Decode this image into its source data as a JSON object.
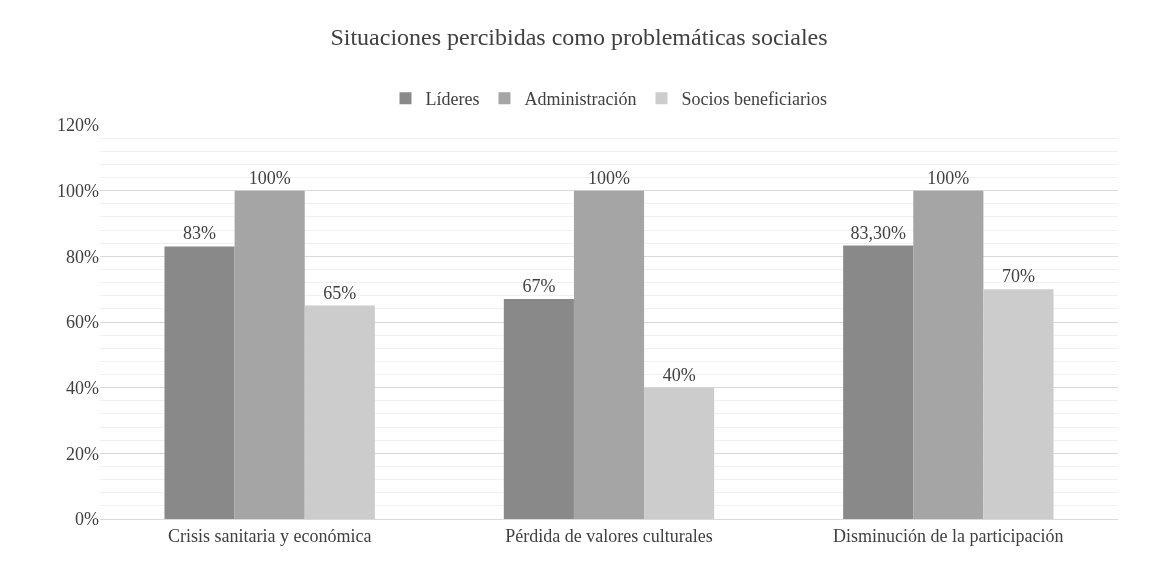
{
  "chart_data": {
    "type": "bar",
    "title": "Situaciones percibidas como problemáticas sociales",
    "categories": [
      "Crisis sanitaria y económica",
      "Pérdida de valores culturales",
      "Disminución de la participación"
    ],
    "series": [
      {
        "name": "Líderes",
        "color": "#898989",
        "values": [
          83,
          67,
          83.3
        ],
        "value_labels": [
          "83%",
          "67%",
          "83,30%"
        ]
      },
      {
        "name": "Administración",
        "color": "#a5a5a5",
        "values": [
          100,
          100,
          100
        ],
        "value_labels": [
          "100%",
          "100%",
          "100%"
        ]
      },
      {
        "name": "Socios beneficiarios",
        "color": "#cccccc",
        "values": [
          65,
          40,
          70
        ],
        "value_labels": [
          "65%",
          "40%",
          "70%"
        ]
      }
    ],
    "ylim": [
      0,
      120
    ],
    "yticks": [
      {
        "value": 0,
        "label": "0%"
      },
      {
        "value": 20,
        "label": "20%"
      },
      {
        "value": 40,
        "label": "40%"
      },
      {
        "value": 60,
        "label": "60%"
      },
      {
        "value": 80,
        "label": "80%"
      },
      {
        "value": 100,
        "label": "100%"
      },
      {
        "value": 120,
        "label": "120%"
      }
    ],
    "grid": "y",
    "legend": "top"
  }
}
